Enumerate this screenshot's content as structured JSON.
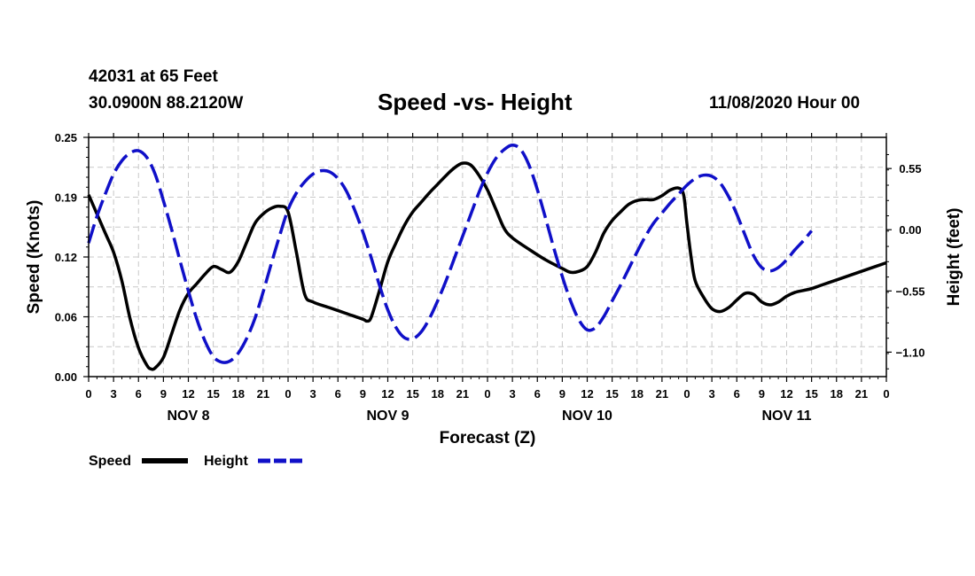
{
  "header": {
    "station": "42031 at 65 Feet",
    "coords": "30.0900N 88.2120W",
    "title": "Speed -vs- Height",
    "datestamp": "11/08/2020 Hour 00"
  },
  "colors": {
    "speed": "#000000",
    "height": "#1010c8",
    "grid": "#c8c8c8",
    "axis": "#000000"
  },
  "chart_data": {
    "type": "line",
    "title": "Speed -vs- Height",
    "xlabel": "Forecast (Z)",
    "ylabel": "Speed (Knots)",
    "y2label": "Height (feet)",
    "xlim": [
      0,
      96
    ],
    "ylim": [
      0,
      0.25
    ],
    "y2lim": [
      -1.32,
      0.83
    ],
    "x_tick_labels": [
      "0",
      "3",
      "6",
      "9",
      "12",
      "15",
      "18",
      "21",
      "0",
      "3",
      "6",
      "9",
      "12",
      "15",
      "18",
      "21",
      "0",
      "3",
      "6",
      "9",
      "12",
      "15",
      "18",
      "21",
      "0",
      "3",
      "6",
      "9",
      "12",
      "15",
      "18",
      "21",
      "0"
    ],
    "day_labels": [
      {
        "label": "NOV 8",
        "center_hour": 12
      },
      {
        "label": "NOV 9",
        "center_hour": 36
      },
      {
        "label": "NOV 10",
        "center_hour": 60
      },
      {
        "label": "NOV 11",
        "center_hour": 84
      }
    ],
    "y_tick_labels": [
      "0.00",
      "0.06",
      "0.12",
      "0.19",
      "0.25"
    ],
    "y2_tick_labels": [
      "−1.10",
      "−0.55",
      "0.00",
      "0.55"
    ],
    "grid": true,
    "legend_position": "bottom-left",
    "series": [
      {
        "name": "Speed",
        "axis": "left",
        "style": "solid",
        "points": [
          [
            0,
            0.19
          ],
          [
            2,
            0.15
          ],
          [
            3,
            0.13
          ],
          [
            4,
            0.1
          ],
          [
            5,
            0.06
          ],
          [
            6,
            0.03
          ],
          [
            7,
            0.012
          ],
          [
            7.5,
            0.008
          ],
          [
            8,
            0.009
          ],
          [
            9,
            0.02
          ],
          [
            10,
            0.045
          ],
          [
            11,
            0.07
          ],
          [
            12,
            0.087
          ],
          [
            13,
            0.097
          ],
          [
            14,
            0.107
          ],
          [
            15,
            0.115
          ],
          [
            16,
            0.112
          ],
          [
            17,
            0.109
          ],
          [
            18,
            0.12
          ],
          [
            19,
            0.14
          ],
          [
            20,
            0.16
          ],
          [
            21,
            0.17
          ],
          [
            22,
            0.176
          ],
          [
            23,
            0.178
          ],
          [
            24,
            0.172
          ],
          [
            25,
            0.13
          ],
          [
            26,
            0.086
          ],
          [
            27,
            0.078
          ],
          [
            29,
            0.072
          ],
          [
            31,
            0.066
          ],
          [
            33,
            0.06
          ],
          [
            33.5,
            0.058
          ],
          [
            34,
            0.062
          ],
          [
            35,
            0.09
          ],
          [
            36,
            0.12
          ],
          [
            37,
            0.14
          ],
          [
            38,
            0.158
          ],
          [
            39,
            0.172
          ],
          [
            40,
            0.182
          ],
          [
            41,
            0.192
          ],
          [
            42,
            0.201
          ],
          [
            43,
            0.21
          ],
          [
            44,
            0.218
          ],
          [
            45,
            0.223
          ],
          [
            46,
            0.221
          ],
          [
            47,
            0.21
          ],
          [
            48,
            0.195
          ],
          [
            49,
            0.175
          ],
          [
            50,
            0.155
          ],
          [
            51,
            0.145
          ],
          [
            53,
            0.133
          ],
          [
            55,
            0.122
          ],
          [
            57,
            0.113
          ],
          [
            58,
            0.109
          ],
          [
            59,
            0.11
          ],
          [
            60,
            0.115
          ],
          [
            61,
            0.13
          ],
          [
            62,
            0.15
          ],
          [
            63,
            0.163
          ],
          [
            64,
            0.172
          ],
          [
            65,
            0.18
          ],
          [
            66,
            0.184
          ],
          [
            67,
            0.185
          ],
          [
            68,
            0.185
          ],
          [
            69,
            0.189
          ],
          [
            70,
            0.195
          ],
          [
            71,
            0.197
          ],
          [
            71.6,
            0.19
          ],
          [
            72,
            0.16
          ],
          [
            72.5,
            0.125
          ],
          [
            73,
            0.1
          ],
          [
            74,
            0.083
          ],
          [
            75,
            0.071
          ],
          [
            76,
            0.068
          ],
          [
            77,
            0.072
          ],
          [
            78,
            0.08
          ],
          [
            79,
            0.087
          ],
          [
            80,
            0.086
          ],
          [
            81,
            0.078
          ],
          [
            82,
            0.075
          ],
          [
            83,
            0.078
          ],
          [
            84,
            0.084
          ],
          [
            85,
            0.088
          ],
          [
            86,
            0.09
          ],
          [
            87,
            0.092
          ],
          [
            88,
            0.095
          ],
          [
            90,
            0.101
          ],
          [
            92,
            0.107
          ],
          [
            94,
            0.113
          ],
          [
            96,
            0.119
          ]
        ]
      },
      {
        "name": "Height",
        "axis": "right",
        "style": "dashed",
        "points": [
          [
            0,
            -0.12
          ],
          [
            1,
            0.12
          ],
          [
            2,
            0.32
          ],
          [
            3,
            0.5
          ],
          [
            4,
            0.62
          ],
          [
            5,
            0.69
          ],
          [
            6,
            0.71
          ],
          [
            7,
            0.65
          ],
          [
            8,
            0.5
          ],
          [
            9,
            0.26
          ],
          [
            10,
            0.0
          ],
          [
            11,
            -0.28
          ],
          [
            12,
            -0.55
          ],
          [
            13,
            -0.8
          ],
          [
            14,
            -1.0
          ],
          [
            15,
            -1.14
          ],
          [
            16,
            -1.19
          ],
          [
            17,
            -1.18
          ],
          [
            18,
            -1.11
          ],
          [
            19,
            -0.98
          ],
          [
            20,
            -0.8
          ],
          [
            21,
            -0.56
          ],
          [
            22,
            -0.3
          ],
          [
            23,
            -0.05
          ],
          [
            24,
            0.18
          ],
          [
            25,
            0.33
          ],
          [
            26,
            0.43
          ],
          [
            27,
            0.5
          ],
          [
            28,
            0.53
          ],
          [
            29,
            0.52
          ],
          [
            30,
            0.46
          ],
          [
            31,
            0.35
          ],
          [
            32,
            0.18
          ],
          [
            33,
            -0.02
          ],
          [
            34,
            -0.25
          ],
          [
            35,
            -0.5
          ],
          [
            36,
            -0.72
          ],
          [
            37,
            -0.88
          ],
          [
            38,
            -0.97
          ],
          [
            39,
            -0.98
          ],
          [
            40,
            -0.92
          ],
          [
            41,
            -0.8
          ],
          [
            42,
            -0.64
          ],
          [
            43,
            -0.46
          ],
          [
            44,
            -0.26
          ],
          [
            45,
            -0.06
          ],
          [
            46,
            0.14
          ],
          [
            47,
            0.34
          ],
          [
            48,
            0.51
          ],
          [
            49,
            0.64
          ],
          [
            50,
            0.72
          ],
          [
            51,
            0.76
          ],
          [
            52,
            0.72
          ],
          [
            53,
            0.58
          ],
          [
            54,
            0.36
          ],
          [
            55,
            0.1
          ],
          [
            56,
            -0.17
          ],
          [
            57,
            -0.42
          ],
          [
            58,
            -0.64
          ],
          [
            59,
            -0.81
          ],
          [
            60,
            -0.9
          ],
          [
            61,
            -0.88
          ],
          [
            62,
            -0.78
          ],
          [
            63,
            -0.64
          ],
          [
            64,
            -0.5
          ],
          [
            65,
            -0.35
          ],
          [
            66,
            -0.2
          ],
          [
            67,
            -0.06
          ],
          [
            68,
            0.06
          ],
          [
            69,
            0.15
          ],
          [
            70,
            0.24
          ],
          [
            71,
            0.32
          ],
          [
            72,
            0.4
          ],
          [
            73,
            0.46
          ],
          [
            74,
            0.49
          ],
          [
            75,
            0.48
          ],
          [
            76,
            0.42
          ],
          [
            77,
            0.3
          ],
          [
            78,
            0.14
          ],
          [
            79,
            -0.05
          ],
          [
            80,
            -0.23
          ],
          [
            81,
            -0.34
          ],
          [
            82,
            -0.37
          ],
          [
            83,
            -0.34
          ],
          [
            84,
            -0.27
          ],
          [
            85,
            -0.18
          ],
          [
            86,
            -0.1
          ],
          [
            87,
            -0.01
          ]
        ]
      }
    ]
  },
  "legend": {
    "speed_label": "Speed",
    "height_label": "Height"
  }
}
